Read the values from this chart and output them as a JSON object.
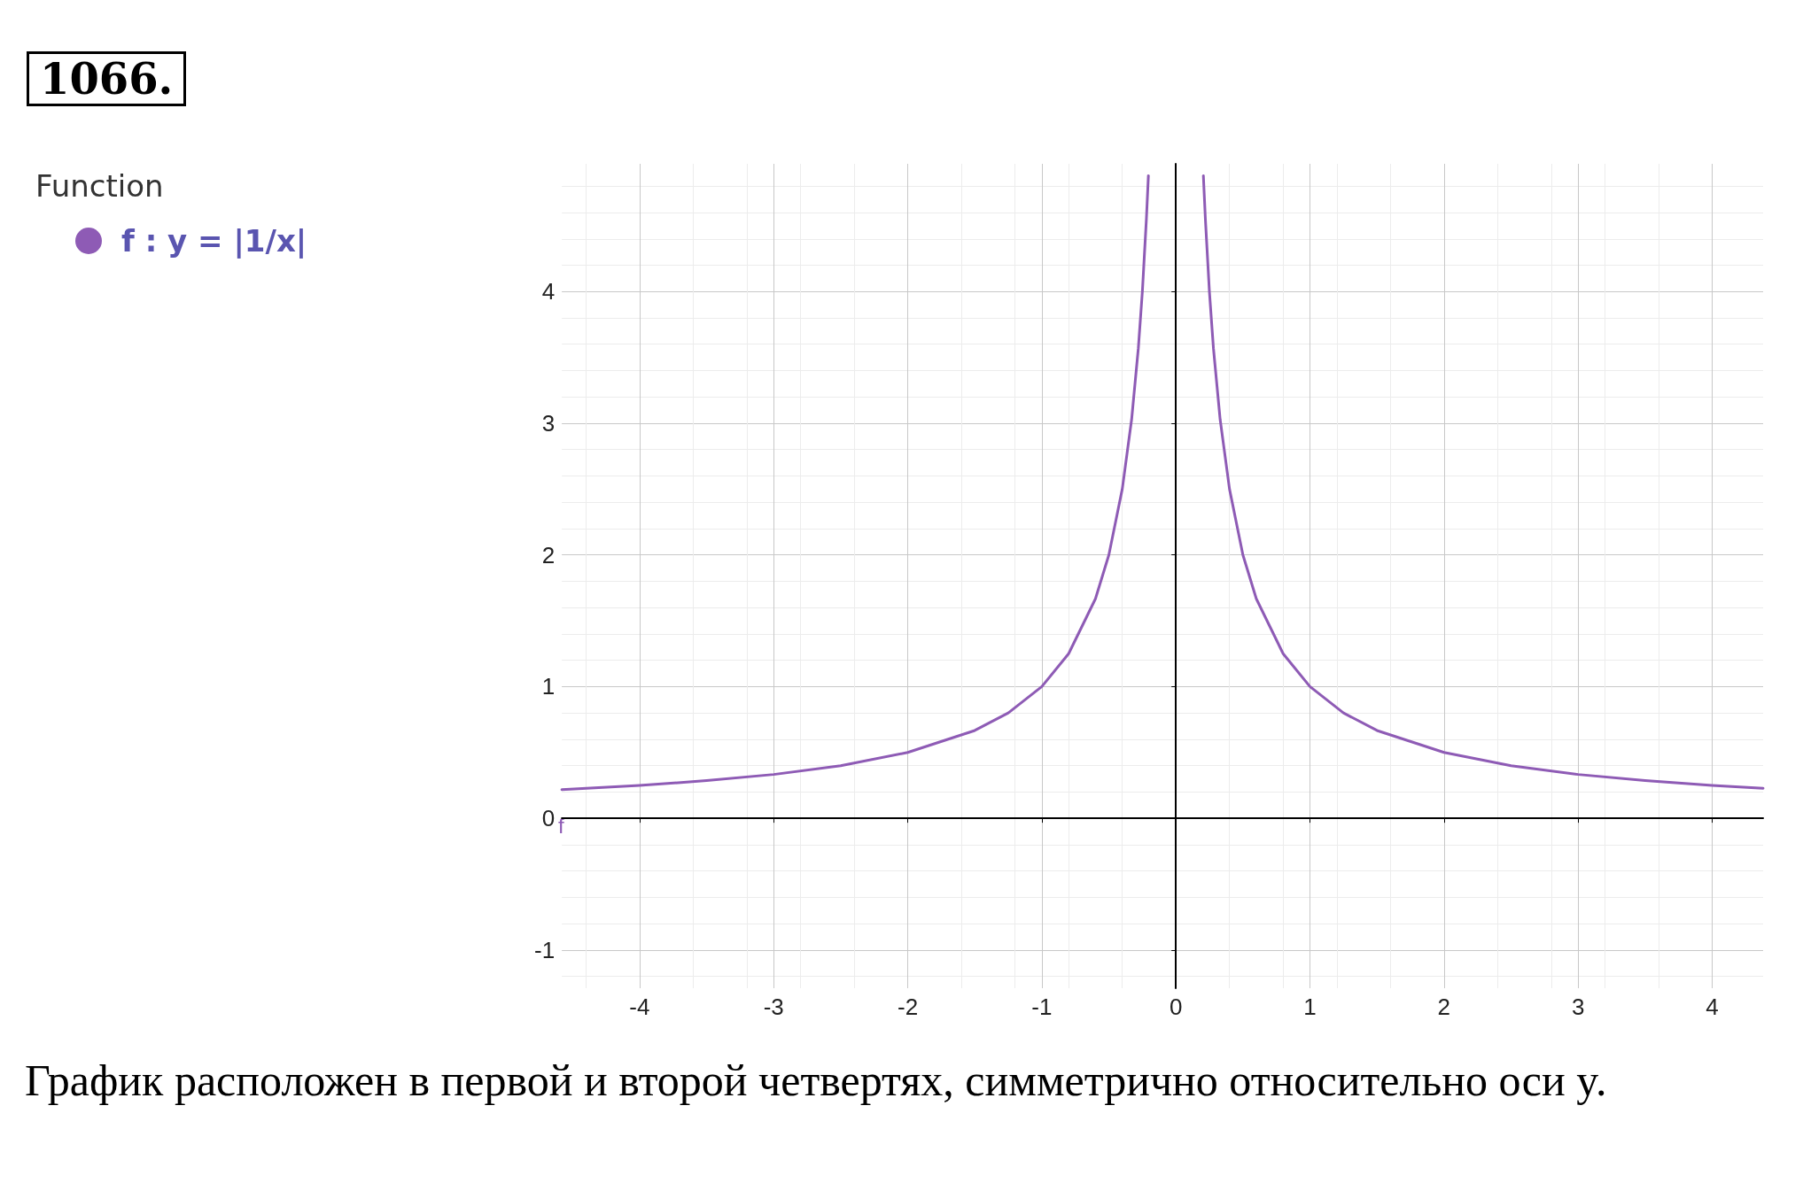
{
  "chart_data": {
    "type": "line",
    "title": "1066.",
    "legend_title": "Function",
    "legend": "top left",
    "x": [
      -4.58,
      -4,
      -3.5,
      -3,
      -2.5,
      -2,
      -1.5,
      -1.25,
      -1,
      -0.8,
      -0.6,
      -0.5,
      -0.4,
      -0.33,
      -0.28,
      -0.25,
      -0.22,
      -0.205,
      0,
      0.205,
      0.22,
      0.25,
      0.28,
      0.33,
      0.4,
      0.5,
      0.6,
      0.8,
      1,
      1.25,
      1.5,
      2,
      2.5,
      3,
      3.5,
      4,
      4.38
    ],
    "series": [
      {
        "name": "f : y = |1/x|",
        "color": "#8e5bb5",
        "values": [
          0.218,
          0.25,
          0.286,
          0.333,
          0.4,
          0.5,
          0.667,
          0.8,
          1,
          1.25,
          1.667,
          2,
          2.5,
          3.03,
          3.57,
          4,
          4.55,
          4.88,
          null,
          4.88,
          4.55,
          4,
          3.57,
          3.03,
          2.5,
          2,
          1.667,
          1.25,
          1,
          0.8,
          0.667,
          0.5,
          0.4,
          0.333,
          0.286,
          0.25,
          0.228
        ]
      }
    ],
    "xlim": [
      -4.58,
      4.38
    ],
    "xticks": [
      -4,
      -3,
      -2,
      -1,
      0,
      1,
      2,
      3,
      4
    ],
    "ylim": [
      -1.29,
      4.97
    ],
    "yticks": [
      -1,
      0,
      1,
      2,
      3,
      4
    ],
    "grid": true,
    "marker": "none",
    "line_style": "solid",
    "annotations": [
      "f",
      "График расположен в первой и второй четвертях, симметрично относительно оси y."
    ]
  }
}
